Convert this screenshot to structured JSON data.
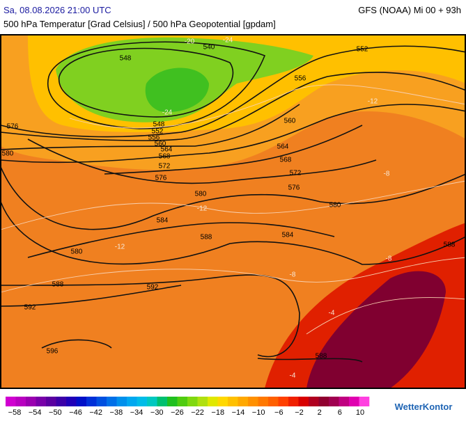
{
  "header": {
    "left": "Sa, 08.08.2026 21:00 UTC",
    "right": "GFS (NOAA) Mi 00 + 93h",
    "subtitle": "500 hPa Temperatur [Grad Celsius] / 500 hPa Geopotential [gpdam]"
  },
  "contour_labels": [
    "548",
    "540",
    "552",
    "556",
    "576",
    "580",
    "548",
    "552",
    "556",
    "560",
    "564",
    "568",
    "572",
    "576",
    "560",
    "564",
    "568",
    "572",
    "576",
    "580",
    "584",
    "588",
    "580",
    "584",
    "588",
    "580",
    "592",
    "592",
    "588",
    "596",
    "588"
  ],
  "temperature_labels": [
    "-20",
    "-24",
    "-24",
    "-12",
    "-12",
    "-12",
    "-8",
    "-8",
    "-8",
    "-4",
    "-4"
  ],
  "legend": {
    "labels": [
      "−58",
      "−54",
      "−50",
      "−46",
      "−42",
      "−38",
      "−34",
      "−30",
      "−26",
      "−22",
      "−18",
      "−14",
      "−10",
      "−6",
      "−2",
      "2",
      "6",
      "10"
    ],
    "colors": [
      "#d000d0",
      "#b800c0",
      "#9a00b0",
      "#7800a8",
      "#5a00a0",
      "#3c00a8",
      "#2000b8",
      "#0010c8",
      "#0030d8",
      "#0050e0",
      "#0070e8",
      "#0090ec",
      "#00a8f0",
      "#00bce8",
      "#00c8c0",
      "#00c070",
      "#20c020",
      "#50cc10",
      "#80d810",
      "#b0e010",
      "#e0e800",
      "#ffd800",
      "#ffc000",
      "#ffa800",
      "#ff9000",
      "#ff7800",
      "#ff6000",
      "#ff4000",
      "#f02000",
      "#d80000",
      "#b00020",
      "#900030",
      "#a00050",
      "#c00080",
      "#e000b0",
      "#ff40e0"
    ]
  },
  "logo": "WetterKontor"
}
